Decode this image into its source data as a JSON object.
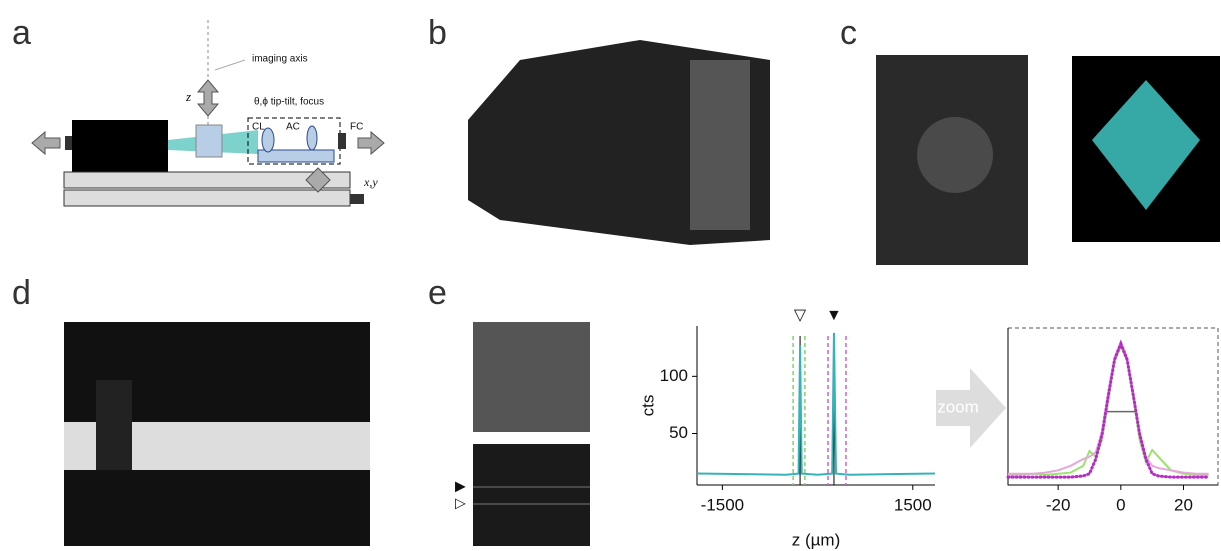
{
  "panels": [
    "a",
    "b",
    "c",
    "d",
    "e"
  ],
  "schematic": {
    "imaging_axis": "imaging axis",
    "z": "z",
    "tilt": "θ,ϕ tip-tilt, focus",
    "cl": "CL",
    "ac": "AC",
    "fc": "FC",
    "xy": "x,y"
  },
  "zoom_label": "zoom",
  "image_markers": [
    "▶",
    "▷"
  ],
  "chart_data": [
    {
      "type": "line",
      "ylabel": "cts",
      "xlabel": "z (µm)",
      "xlim": [
        -1900,
        1850
      ],
      "ylim": [
        5,
        144
      ],
      "xticks": [
        -1500,
        1500
      ],
      "yticks": [
        50,
        100
      ],
      "series": [
        {
          "color": "#35b3b8",
          "x": [
            -1900,
            -500,
            -300,
            -276,
            -250,
            0,
            230,
            258,
            290,
            500,
            1850
          ],
          "values": [
            15,
            14,
            15,
            127,
            15,
            14,
            15,
            138,
            15,
            14,
            15
          ]
        }
      ],
      "vlines": [
        {
          "x": -385,
          "color": "#7fd36a"
        },
        {
          "x": -200,
          "color": "#7fd36a"
        },
        {
          "x": 164,
          "color": "#d65bd6"
        },
        {
          "x": 447,
          "color": "#d65bd6"
        }
      ],
      "markers": [
        {
          "x": -276,
          "label": "▽"
        },
        {
          "x": 258,
          "label": "▼"
        }
      ]
    },
    {
      "type": "line",
      "xlim": [
        -36,
        31
      ],
      "ylim": [
        5,
        144
      ],
      "xticks": [
        -20,
        0,
        20
      ],
      "x": [
        -36,
        -32,
        -28,
        -24,
        -20,
        -16,
        -12,
        -10,
        -8,
        -6,
        -4,
        -2,
        0,
        2,
        4,
        6,
        8,
        10,
        12,
        16,
        20,
        24,
        28
      ],
      "series": [
        {
          "color": "#9be36c",
          "values": [
            14,
            14,
            15,
            14,
            15,
            16,
            22,
            35,
            30,
            45,
            80,
            115,
            128,
            115,
            82,
            45,
            25,
            36,
            30,
            18,
            15,
            14,
            14
          ]
        },
        {
          "color": "#e7a6dc",
          "values": [
            15,
            15,
            15,
            16,
            18,
            22,
            28,
            30,
            34,
            52,
            88,
            118,
            132,
            118,
            86,
            52,
            30,
            22,
            20,
            18,
            16,
            15,
            15
          ]
        },
        {
          "color": "#b52cc4",
          "dotted": true,
          "values": [
            12,
            12,
            12,
            12,
            12,
            12,
            13,
            15,
            28,
            50,
            84,
            116,
            130,
            116,
            84,
            50,
            28,
            15,
            13,
            12,
            12,
            12,
            12
          ]
        }
      ],
      "fwhm": {
        "x": [
          -4.5,
          4.5
        ],
        "y": 70
      }
    }
  ]
}
